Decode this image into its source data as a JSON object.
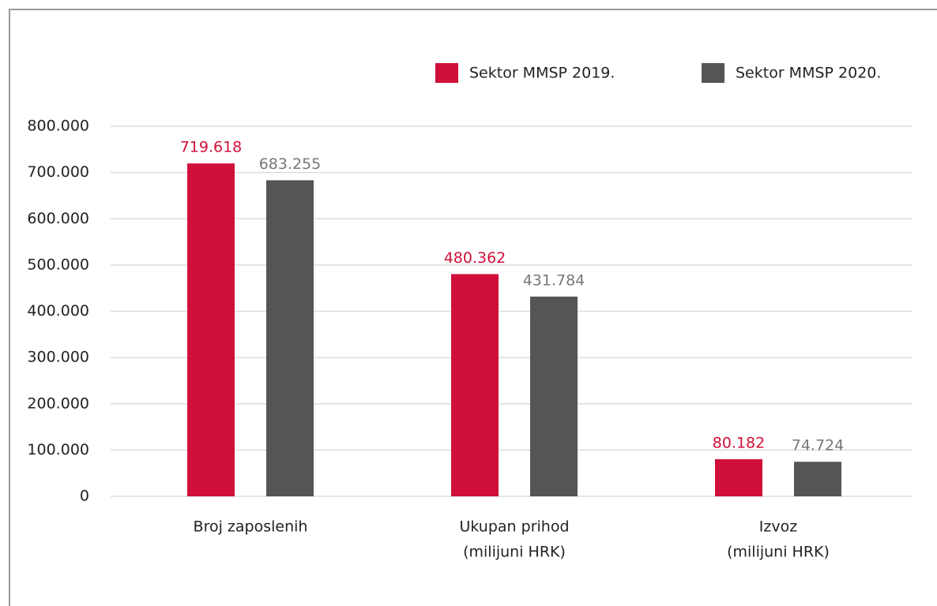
{
  "chart_data": {
    "type": "bar",
    "categories": [
      [
        "Broj zaposlenih"
      ],
      [
        "Ukupan prihod",
        "(milijuni HRK)"
      ],
      [
        "Izvoz",
        "(milijuni HRK)"
      ]
    ],
    "series": [
      {
        "name": "Sektor MMSP 2019.",
        "color": "#d0103a",
        "values": [
          719618,
          480362,
          80182
        ],
        "value_labels": [
          "719.618",
          "480.362",
          "80.182"
        ]
      },
      {
        "name": "Sektor MMSP 2020.",
        "color": "#555555",
        "values": [
          683255,
          431784,
          74724
        ],
        "value_labels": [
          "683.255",
          "431.784",
          "74.724"
        ]
      }
    ],
    "ylim": [
      0,
      800000
    ],
    "yticks": [
      0,
      {
        "value": 100000,
        "label": "100.000"
      },
      {
        "value": 200000,
        "label": "200.000"
      },
      {
        "value": 300000,
        "label": "300.000"
      },
      {
        "value": 400000,
        "label": "400.000"
      },
      {
        "value": 500000,
        "label": "500.000"
      },
      {
        "value": 600000,
        "label": "600.000"
      },
      {
        "value": 700000,
        "label": "700.000"
      },
      {
        "value": 800000,
        "label": "800.000"
      }
    ],
    "grid": true
  }
}
